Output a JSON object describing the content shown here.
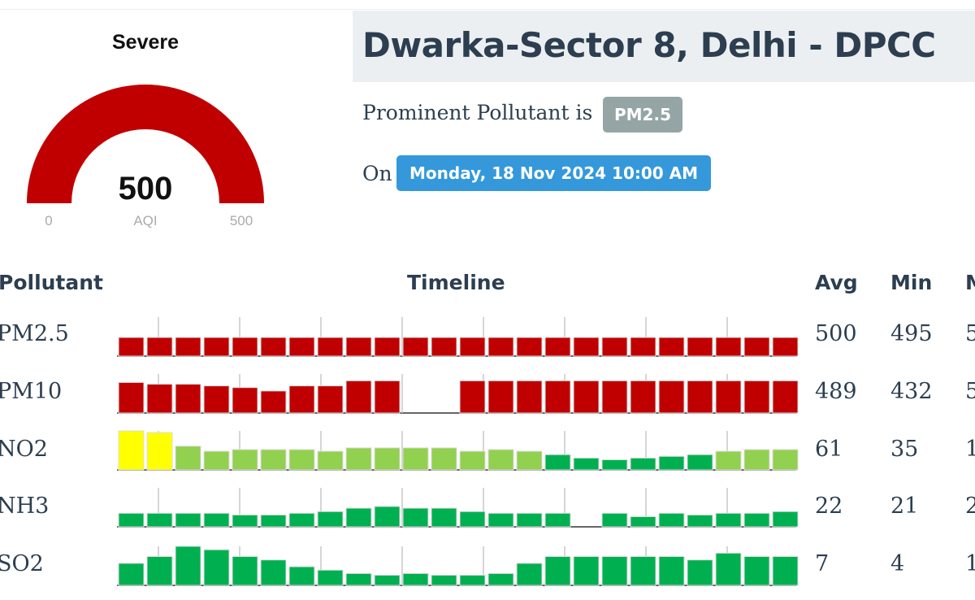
{
  "gauge": {
    "category": "Severe",
    "value": "500",
    "label": "AQI",
    "min": "0",
    "max": "500",
    "fraction": 1.0,
    "color": "#c00000"
  },
  "station": {
    "title": "Dwarka-Sector 8, Delhi - DPCC",
    "prominent_prefix": "Prominent Pollutant is",
    "prominent_pollutant": "PM2.5",
    "on_label": "On",
    "timestamp": "Monday, 18 Nov 2024 10:00 AM"
  },
  "table": {
    "headers": {
      "pollutant": "Pollutant",
      "timeline": "Timeline",
      "avg": "Avg",
      "min": "Min",
      "max": "M"
    },
    "rows": [
      {
        "name": "PM2.5",
        "avg": "500",
        "min": "495",
        "max": "5"
      },
      {
        "name": "PM10",
        "avg": "489",
        "min": "432",
        "max": "5"
      },
      {
        "name": "NO2",
        "avg": "61",
        "min": "35",
        "max": "1"
      },
      {
        "name": "NH3",
        "avg": "22",
        "min": "21",
        "max": "2"
      },
      {
        "name": "SO2",
        "avg": "7",
        "min": "4",
        "max": "1"
      }
    ]
  },
  "colors": {
    "severe": "#c00000",
    "good": "#00b050",
    "satisfactory": "#92d050",
    "moderate": "#ffff00",
    "badge_grey": "#95a5a6",
    "badge_blue": "#3498db"
  },
  "timelines": [
    {
      "pollutant": "PM2.5",
      "ticks": 8,
      "bars": [
        {
          "v": 22,
          "c": "severe"
        },
        {
          "v": 22,
          "c": "severe"
        },
        {
          "v": 22,
          "c": "severe"
        },
        {
          "v": 22,
          "c": "severe"
        },
        {
          "v": 22,
          "c": "severe"
        },
        {
          "v": 22,
          "c": "severe"
        },
        {
          "v": 22,
          "c": "severe"
        },
        {
          "v": 22,
          "c": "severe"
        },
        {
          "v": 22,
          "c": "severe"
        },
        {
          "v": 22,
          "c": "severe"
        },
        {
          "v": 22,
          "c": "severe"
        },
        {
          "v": 22,
          "c": "severe"
        },
        {
          "v": 22,
          "c": "severe"
        },
        {
          "v": 22,
          "c": "severe"
        },
        {
          "v": 22,
          "c": "severe"
        },
        {
          "v": 22,
          "c": "severe"
        },
        {
          "v": 22,
          "c": "severe"
        },
        {
          "v": 22,
          "c": "severe"
        },
        {
          "v": 22,
          "c": "severe"
        },
        {
          "v": 22,
          "c": "severe"
        },
        {
          "v": 22,
          "c": "severe"
        },
        {
          "v": 22,
          "c": "severe"
        },
        {
          "v": 22,
          "c": "severe"
        },
        {
          "v": 22,
          "c": "severe"
        }
      ]
    },
    {
      "pollutant": "PM10",
      "ticks": 8,
      "bars": [
        {
          "v": 36,
          "c": "severe"
        },
        {
          "v": 34,
          "c": "severe"
        },
        {
          "v": 34,
          "c": "severe"
        },
        {
          "v": 32,
          "c": "severe"
        },
        {
          "v": 30,
          "c": "severe"
        },
        {
          "v": 26,
          "c": "severe"
        },
        {
          "v": 32,
          "c": "severe"
        },
        {
          "v": 32,
          "c": "severe"
        },
        {
          "v": 38,
          "c": "severe"
        },
        {
          "v": 38,
          "c": "severe"
        },
        null,
        null,
        {
          "v": 38,
          "c": "severe"
        },
        {
          "v": 38,
          "c": "severe"
        },
        {
          "v": 38,
          "c": "severe"
        },
        {
          "v": 38,
          "c": "severe"
        },
        {
          "v": 38,
          "c": "severe"
        },
        {
          "v": 38,
          "c": "severe"
        },
        {
          "v": 38,
          "c": "severe"
        },
        {
          "v": 38,
          "c": "severe"
        },
        {
          "v": 38,
          "c": "severe"
        },
        {
          "v": 38,
          "c": "severe"
        },
        {
          "v": 38,
          "c": "severe"
        },
        {
          "v": 38,
          "c": "severe"
        }
      ]
    },
    {
      "pollutant": "NO2",
      "ticks": 8,
      "bars": [
        {
          "v": 46,
          "c": "moderate"
        },
        {
          "v": 44,
          "c": "moderate"
        },
        {
          "v": 28,
          "c": "satisfactory"
        },
        {
          "v": 22,
          "c": "satisfactory"
        },
        {
          "v": 24,
          "c": "satisfactory"
        },
        {
          "v": 24,
          "c": "satisfactory"
        },
        {
          "v": 24,
          "c": "satisfactory"
        },
        {
          "v": 22,
          "c": "satisfactory"
        },
        {
          "v": 26,
          "c": "satisfactory"
        },
        {
          "v": 26,
          "c": "satisfactory"
        },
        {
          "v": 26,
          "c": "satisfactory"
        },
        {
          "v": 26,
          "c": "satisfactory"
        },
        {
          "v": 22,
          "c": "satisfactory"
        },
        {
          "v": 24,
          "c": "satisfactory"
        },
        {
          "v": 22,
          "c": "satisfactory"
        },
        {
          "v": 18,
          "c": "good"
        },
        {
          "v": 14,
          "c": "good"
        },
        {
          "v": 12,
          "c": "good"
        },
        {
          "v": 14,
          "c": "good"
        },
        {
          "v": 16,
          "c": "good"
        },
        {
          "v": 18,
          "c": "good"
        },
        {
          "v": 22,
          "c": "satisfactory"
        },
        {
          "v": 24,
          "c": "satisfactory"
        },
        {
          "v": 24,
          "c": "satisfactory"
        }
      ]
    },
    {
      "pollutant": "NH3",
      "ticks": 8,
      "bars": [
        {
          "v": 16,
          "c": "good"
        },
        {
          "v": 16,
          "c": "good"
        },
        {
          "v": 16,
          "c": "good"
        },
        {
          "v": 16,
          "c": "good"
        },
        {
          "v": 14,
          "c": "good"
        },
        {
          "v": 14,
          "c": "good"
        },
        {
          "v": 16,
          "c": "good"
        },
        {
          "v": 18,
          "c": "good"
        },
        {
          "v": 22,
          "c": "good"
        },
        {
          "v": 24,
          "c": "good"
        },
        {
          "v": 22,
          "c": "good"
        },
        {
          "v": 22,
          "c": "good"
        },
        {
          "v": 18,
          "c": "good"
        },
        {
          "v": 16,
          "c": "good"
        },
        {
          "v": 16,
          "c": "good"
        },
        {
          "v": 16,
          "c": "good"
        },
        null,
        {
          "v": 16,
          "c": "good"
        },
        {
          "v": 12,
          "c": "good"
        },
        {
          "v": 16,
          "c": "good"
        },
        {
          "v": 14,
          "c": "good"
        },
        {
          "v": 16,
          "c": "good"
        },
        {
          "v": 16,
          "c": "good"
        },
        {
          "v": 18,
          "c": "good"
        }
      ]
    },
    {
      "pollutant": "SO2",
      "ticks": 8,
      "bars": [
        {
          "v": 26,
          "c": "good"
        },
        {
          "v": 34,
          "c": "good"
        },
        {
          "v": 46,
          "c": "good"
        },
        {
          "v": 42,
          "c": "good"
        },
        {
          "v": 34,
          "c": "good"
        },
        {
          "v": 30,
          "c": "good"
        },
        {
          "v": 22,
          "c": "good"
        },
        {
          "v": 18,
          "c": "good"
        },
        {
          "v": 14,
          "c": "good"
        },
        {
          "v": 12,
          "c": "good"
        },
        {
          "v": 14,
          "c": "good"
        },
        {
          "v": 12,
          "c": "good"
        },
        {
          "v": 12,
          "c": "good"
        },
        {
          "v": 14,
          "c": "good"
        },
        {
          "v": 26,
          "c": "good"
        },
        {
          "v": 34,
          "c": "good"
        },
        {
          "v": 34,
          "c": "good"
        },
        {
          "v": 34,
          "c": "good"
        },
        {
          "v": 34,
          "c": "good"
        },
        {
          "v": 34,
          "c": "good"
        },
        {
          "v": 30,
          "c": "good"
        },
        {
          "v": 38,
          "c": "good"
        },
        {
          "v": 34,
          "c": "good"
        },
        {
          "v": 34,
          "c": "good"
        }
      ]
    }
  ]
}
